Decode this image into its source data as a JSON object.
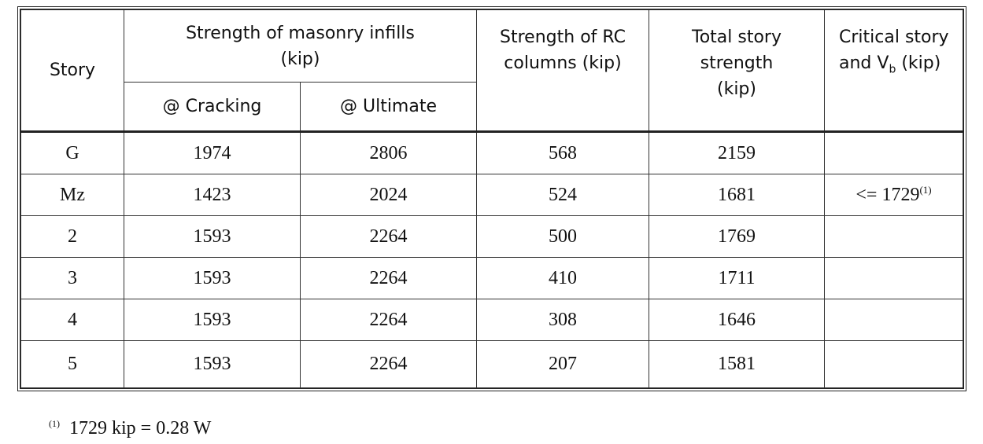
{
  "table": {
    "header": {
      "story": "Story",
      "masonry": "Strength of masonry infills (kip)",
      "cracking": "@ Cracking",
      "ultimate": "@ Ultimate",
      "columns": "Strength of RC columns (kip)",
      "total": "Total story strength (kip)",
      "critical": {
        "text": "Critical story and V",
        "sub": "b",
        "unit": "(kip)"
      }
    },
    "rows": [
      {
        "story": "G",
        "cracking": 1974,
        "ultimate": 2806,
        "columns": 568,
        "total": 2159
      },
      {
        "story": "Mz",
        "cracking": 1423,
        "ultimate": 2024,
        "columns": 524,
        "total": 1681,
        "critical": {
          "text": "<= 1729",
          "note": "(1)"
        }
      },
      {
        "story": "2",
        "cracking": 1593,
        "ultimate": 2264,
        "columns": 500,
        "total": 1769
      },
      {
        "story": "3",
        "cracking": 1593,
        "ultimate": 2264,
        "columns": 410,
        "total": 1711
      },
      {
        "story": "4",
        "cracking": 1593,
        "ultimate": 2264,
        "columns": 308,
        "total": 1646
      },
      {
        "story": "5",
        "cracking": 1593,
        "ultimate": 2264,
        "columns": 207,
        "total": 1581
      }
    ]
  },
  "footnote": {
    "marker": "(1)",
    "text": "1729 kip = 0.28 W"
  }
}
